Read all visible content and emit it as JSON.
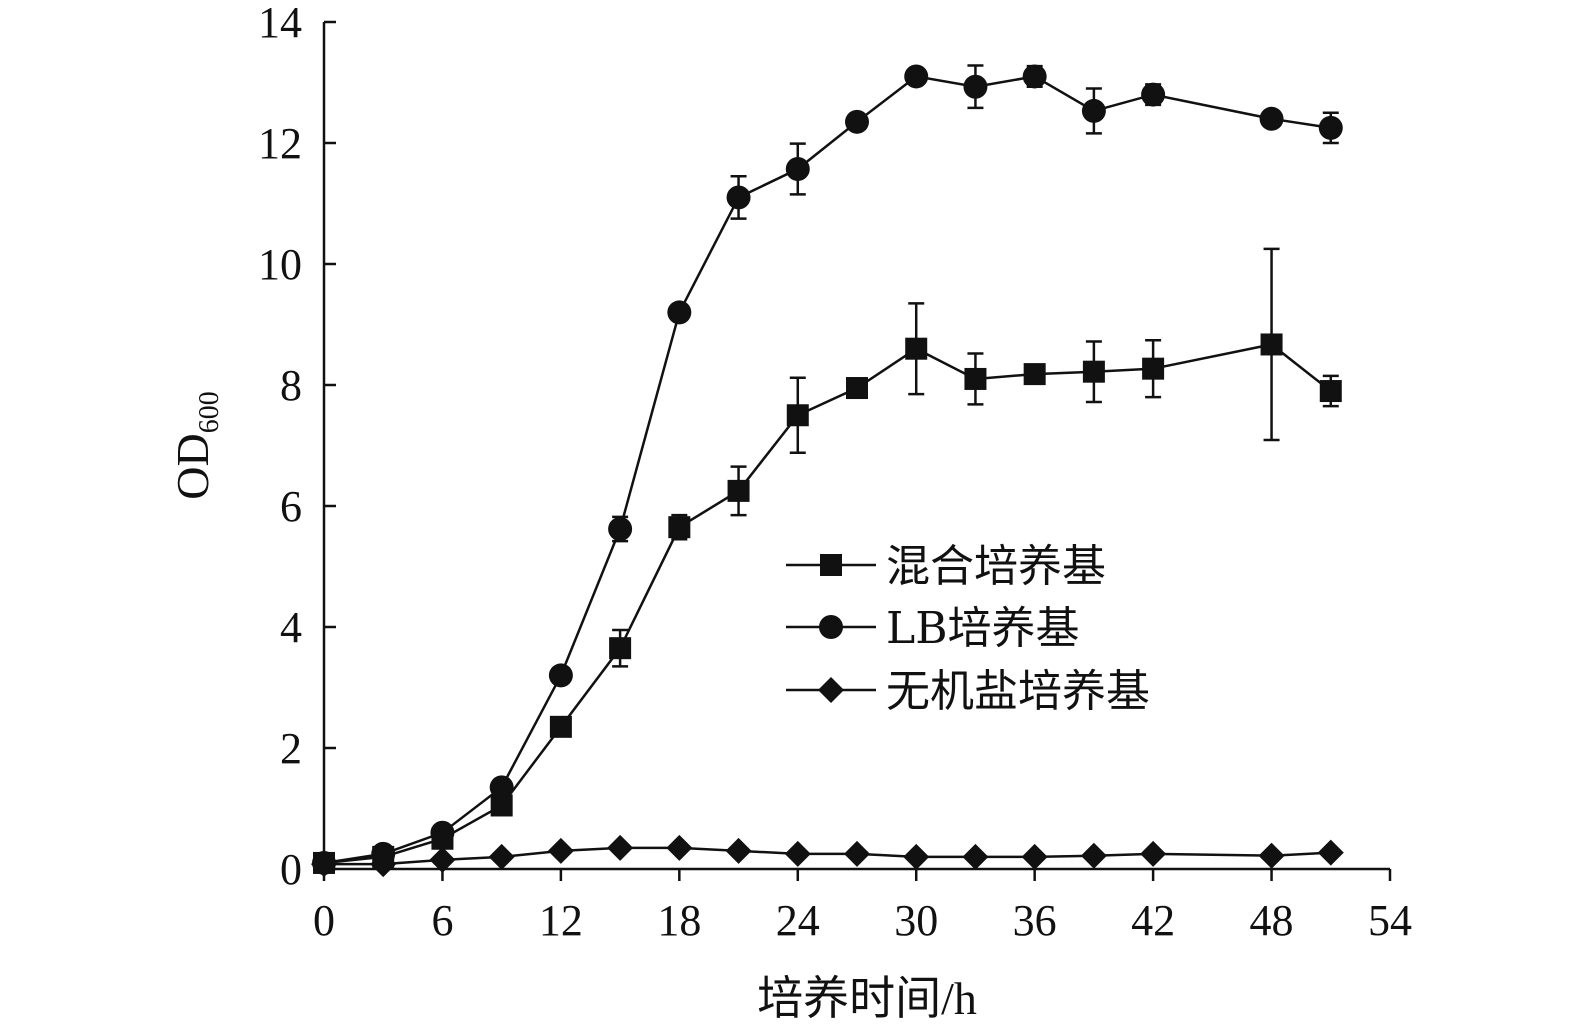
{
  "chart_data": {
    "type": "line",
    "title": "",
    "xlabel": "培养时间/h",
    "ylabel_main": "OD",
    "ylabel_sub": "600",
    "xlim": [
      0,
      54
    ],
    "ylim": [
      0,
      14
    ],
    "xticks": [
      0,
      6,
      12,
      18,
      24,
      30,
      36,
      42,
      48,
      54
    ],
    "yticks": [
      0,
      2,
      4,
      6,
      8,
      10,
      12,
      14
    ],
    "grid": false,
    "legend_position": "center-right",
    "series": [
      {
        "name": "混合培养基",
        "marker": "square",
        "color": "#111111",
        "points": [
          {
            "x": 0,
            "y": 0.1,
            "err": 0
          },
          {
            "x": 3,
            "y": 0.2,
            "err": 0
          },
          {
            "x": 6,
            "y": 0.5,
            "err": 0
          },
          {
            "x": 9,
            "y": 1.05,
            "err": 0
          },
          {
            "x": 12,
            "y": 2.35,
            "err": 0
          },
          {
            "x": 15,
            "y": 3.65,
            "err": 0.3
          },
          {
            "x": 18,
            "y": 5.65,
            "err": 0.2
          },
          {
            "x": 21,
            "y": 6.25,
            "err": 0.4
          },
          {
            "x": 24,
            "y": 7.5,
            "err": 0.62
          },
          {
            "x": 27,
            "y": 7.95,
            "err": 0.1
          },
          {
            "x": 30,
            "y": 8.6,
            "err": 0.75
          },
          {
            "x": 33,
            "y": 8.1,
            "err": 0.42
          },
          {
            "x": 36,
            "y": 8.18,
            "err": 0
          },
          {
            "x": 39,
            "y": 8.22,
            "err": 0.5
          },
          {
            "x": 42,
            "y": 8.27,
            "err": 0.47
          },
          {
            "x": 48,
            "y": 8.67,
            "err": 1.58
          },
          {
            "x": 51,
            "y": 7.9,
            "err": 0.25
          }
        ]
      },
      {
        "name": "LB培养基",
        "marker": "circle",
        "color": "#111111",
        "points": [
          {
            "x": 0,
            "y": 0.1,
            "err": 0
          },
          {
            "x": 3,
            "y": 0.25,
            "err": 0
          },
          {
            "x": 6,
            "y": 0.6,
            "err": 0
          },
          {
            "x": 9,
            "y": 1.35,
            "err": 0
          },
          {
            "x": 12,
            "y": 3.2,
            "err": 0
          },
          {
            "x": 15,
            "y": 5.62,
            "err": 0.2
          },
          {
            "x": 18,
            "y": 9.2,
            "err": 0
          },
          {
            "x": 21,
            "y": 11.1,
            "err": 0.35
          },
          {
            "x": 24,
            "y": 11.57,
            "err": 0.42
          },
          {
            "x": 27,
            "y": 12.35,
            "err": 0
          },
          {
            "x": 30,
            "y": 13.1,
            "err": 0
          },
          {
            "x": 33,
            "y": 12.93,
            "err": 0.35
          },
          {
            "x": 36,
            "y": 13.1,
            "err": 0.17
          },
          {
            "x": 39,
            "y": 12.53,
            "err": 0.37
          },
          {
            "x": 42,
            "y": 12.8,
            "err": 0.17
          },
          {
            "x": 48,
            "y": 12.4,
            "err": 0
          },
          {
            "x": 51,
            "y": 12.25,
            "err": 0.25
          }
        ]
      },
      {
        "name": "无机盐培养基",
        "marker": "diamond",
        "color": "#111111",
        "points": [
          {
            "x": 0,
            "y": 0.08,
            "err": 0
          },
          {
            "x": 3,
            "y": 0.08,
            "err": 0
          },
          {
            "x": 6,
            "y": 0.15,
            "err": 0
          },
          {
            "x": 9,
            "y": 0.2,
            "err": 0
          },
          {
            "x": 12,
            "y": 0.3,
            "err": 0
          },
          {
            "x": 15,
            "y": 0.35,
            "err": 0
          },
          {
            "x": 18,
            "y": 0.35,
            "err": 0
          },
          {
            "x": 21,
            "y": 0.3,
            "err": 0
          },
          {
            "x": 24,
            "y": 0.25,
            "err": 0
          },
          {
            "x": 27,
            "y": 0.25,
            "err": 0
          },
          {
            "x": 30,
            "y": 0.2,
            "err": 0
          },
          {
            "x": 33,
            "y": 0.2,
            "err": 0
          },
          {
            "x": 36,
            "y": 0.2,
            "err": 0
          },
          {
            "x": 39,
            "y": 0.22,
            "err": 0
          },
          {
            "x": 42,
            "y": 0.25,
            "err": 0
          },
          {
            "x": 48,
            "y": 0.22,
            "err": 0
          },
          {
            "x": 51,
            "y": 0.27,
            "err": 0
          }
        ]
      }
    ]
  }
}
